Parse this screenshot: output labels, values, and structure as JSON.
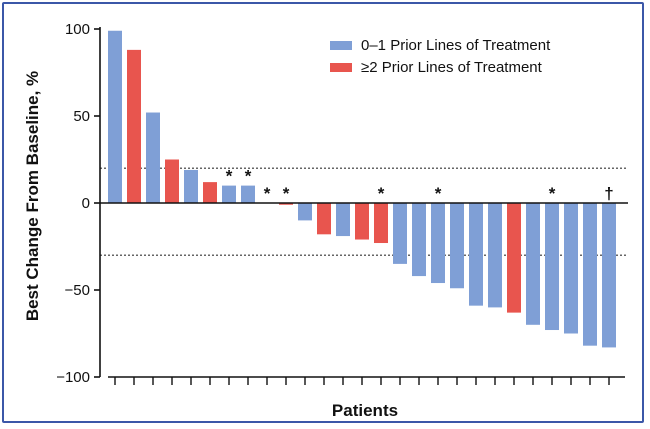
{
  "chart_data": {
    "type": "bar",
    "xlabel": "Patients",
    "ylabel": "Best Change From Baseline, %",
    "ylim": [
      -100,
      100
    ],
    "yticks": [
      100,
      50,
      0,
      -50,
      -100
    ],
    "reference_lines": [
      20,
      -30
    ],
    "series": [
      {
        "name": "0–1 Prior Lines of Treatment",
        "color": "#7f9fd6"
      },
      {
        "name": "≥2 Prior Lines of Treatment",
        "color": "#e8554e"
      }
    ],
    "bars": [
      {
        "value": 99,
        "group": 0,
        "mark": ""
      },
      {
        "value": 88,
        "group": 1,
        "mark": ""
      },
      {
        "value": 52,
        "group": 0,
        "mark": ""
      },
      {
        "value": 25,
        "group": 1,
        "mark": ""
      },
      {
        "value": 19,
        "group": 0,
        "mark": ""
      },
      {
        "value": 12,
        "group": 1,
        "mark": ""
      },
      {
        "value": 10,
        "group": 0,
        "mark": "*"
      },
      {
        "value": 10,
        "group": 0,
        "mark": "*"
      },
      {
        "value": 0,
        "group": 0,
        "mark": "*"
      },
      {
        "value": -1,
        "group": 1,
        "mark": "*"
      },
      {
        "value": -10,
        "group": 0,
        "mark": ""
      },
      {
        "value": -18,
        "group": 1,
        "mark": ""
      },
      {
        "value": -19,
        "group": 0,
        "mark": ""
      },
      {
        "value": -21,
        "group": 1,
        "mark": ""
      },
      {
        "value": -23,
        "group": 1,
        "mark": "*"
      },
      {
        "value": -35,
        "group": 0,
        "mark": ""
      },
      {
        "value": -42,
        "group": 0,
        "mark": ""
      },
      {
        "value": -46,
        "group": 0,
        "mark": "*"
      },
      {
        "value": -49,
        "group": 0,
        "mark": ""
      },
      {
        "value": -59,
        "group": 0,
        "mark": ""
      },
      {
        "value": -60,
        "group": 0,
        "mark": ""
      },
      {
        "value": -63,
        "group": 1,
        "mark": ""
      },
      {
        "value": -70,
        "group": 0,
        "mark": ""
      },
      {
        "value": -73,
        "group": 0,
        "mark": "*"
      },
      {
        "value": -75,
        "group": 0,
        "mark": ""
      },
      {
        "value": -82,
        "group": 0,
        "mark": ""
      },
      {
        "value": -83,
        "group": 0,
        "mark": "†"
      }
    ]
  }
}
